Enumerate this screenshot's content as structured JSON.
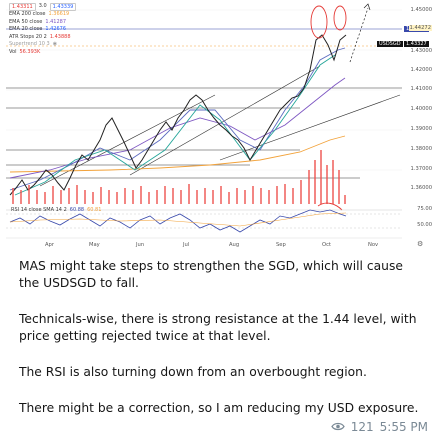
{
  "chart": {
    "legend": {
      "header": {
        "value1": "1.43311",
        "value2": "3.0",
        "value3": "1.43339"
      },
      "rows": [
        {
          "name": "EMA 200 close",
          "value": "1.36619",
          "color": "#f2a23a"
        },
        {
          "name": "EMA 50 close",
          "value": "1.41287",
          "color": "#7e57c2"
        },
        {
          "name": "EMA 20 close",
          "value": "1.42676",
          "color": "#2962ff"
        },
        {
          "name": "ATR Stops 20 2",
          "value": "1.43888",
          "color": "#e53935"
        },
        {
          "name": "Supertrend 10 3",
          "value": "",
          "color": "#26a69a"
        },
        {
          "name": "Vol",
          "value": "56.393K",
          "color": "#e53935"
        }
      ]
    },
    "rsi_legend": {
      "name": "RSI 14 close SMA 14 2",
      "value1": "60.88",
      "value2": "60.81"
    },
    "symbol_tag": "USDSGD",
    "price_tags": [
      "1.43327",
      "1.43311"
    ],
    "y_ticks": [
      "1.45000",
      "1.44272",
      "1.43000",
      "1.42000",
      "1.41000",
      "1.40000",
      "1.39000",
      "1.38000",
      "1.37000",
      "1.36000",
      "1.35000"
    ],
    "rsi_ticks": [
      "75.00",
      "50.00"
    ],
    "x_ticks": [
      "Apr",
      "May",
      "Jun",
      "Jul",
      "Aug",
      "Sep",
      "Oct",
      "Nov"
    ],
    "colors": {
      "up": "#26a69a",
      "down": "#ef5350",
      "candle": "#222222",
      "ema200": "#f2a23a",
      "ema50": "#7e57c2",
      "ema20": "#2962ff",
      "annotation": "#e53935"
    }
  },
  "message": {
    "paragraphs": [
      "MAS might take steps to strengthen the SGD, which will cause the USDSGD to fall.",
      "Technicals-wise, there is strong resistance at the 1.44 level, with price getting rejected twice at that level.",
      "The RSI is also turning down from an overbought region.",
      "There might be a correction, so I am reducing my USD exposure."
    ],
    "views": "121",
    "time": "5:55 PM"
  }
}
